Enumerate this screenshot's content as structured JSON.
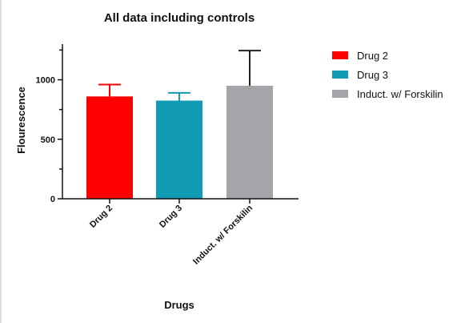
{
  "chart_data": {
    "type": "bar",
    "title": "All data including controls",
    "xlabel": "Drugs",
    "ylabel": "Flourescence",
    "categories": [
      "Drug 2",
      "Drug 3",
      "Induct. w/ Forskilin"
    ],
    "values": [
      860,
      825,
      950
    ],
    "errors": [
      100,
      65,
      295
    ],
    "colors": [
      "#ff0000",
      "#129bb5",
      "#a5a4a9"
    ],
    "ylim": [
      0,
      1300
    ],
    "yticks": [
      0,
      500,
      1000
    ],
    "grid": false,
    "legend": {
      "placement": "right",
      "entries": [
        "Drug 2",
        "Drug 3",
        "Induct. w/ Forskilin"
      ]
    }
  }
}
